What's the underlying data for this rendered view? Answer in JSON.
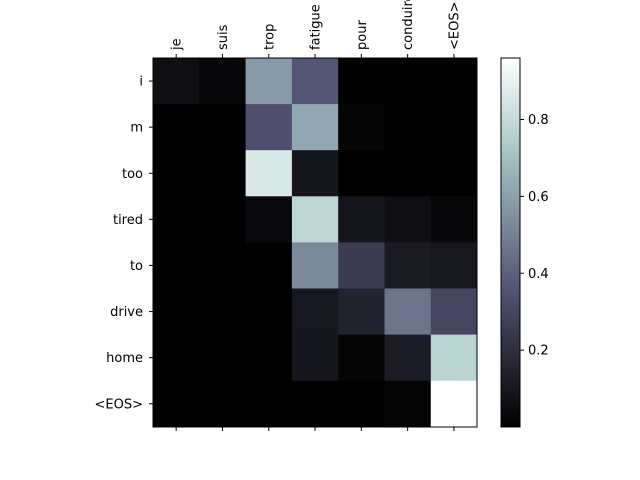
{
  "chart_data": {
    "type": "heatmap",
    "colormap": "bone",
    "x_labels": [
      "je",
      "suis",
      "trop",
      "fatigue",
      "pour",
      "conduire",
      "<EOS>"
    ],
    "y_labels": [
      "i",
      "m",
      "too",
      "tired",
      "to",
      "drive",
      "home",
      "<EOS>"
    ],
    "values": [
      [
        0.06,
        0.03,
        0.58,
        0.36,
        0.0,
        0.0,
        0.0
      ],
      [
        0.0,
        0.0,
        0.34,
        0.62,
        0.02,
        0.0,
        0.0
      ],
      [
        0.0,
        0.0,
        0.86,
        0.09,
        0.0,
        0.0,
        0.0
      ],
      [
        0.0,
        0.0,
        0.04,
        0.78,
        0.09,
        0.06,
        0.03
      ],
      [
        0.0,
        0.0,
        0.0,
        0.53,
        0.26,
        0.11,
        0.1
      ],
      [
        0.0,
        0.0,
        0.0,
        0.1,
        0.15,
        0.46,
        0.3
      ],
      [
        0.0,
        0.0,
        0.0,
        0.09,
        0.02,
        0.12,
        0.77
      ],
      [
        0.0,
        0.0,
        0.0,
        0.0,
        0.0,
        0.02,
        0.96
      ]
    ],
    "vmin": 0.0,
    "vmax": 0.96,
    "colorbar_ticks": [
      "0.2",
      "0.4",
      "0.6",
      "0.8"
    ],
    "colorbar_tick_values": [
      0.2,
      0.4,
      0.6,
      0.8
    ],
    "x_tick_rotation": "vertical",
    "x_labels_position": "top",
    "grid": false
  }
}
